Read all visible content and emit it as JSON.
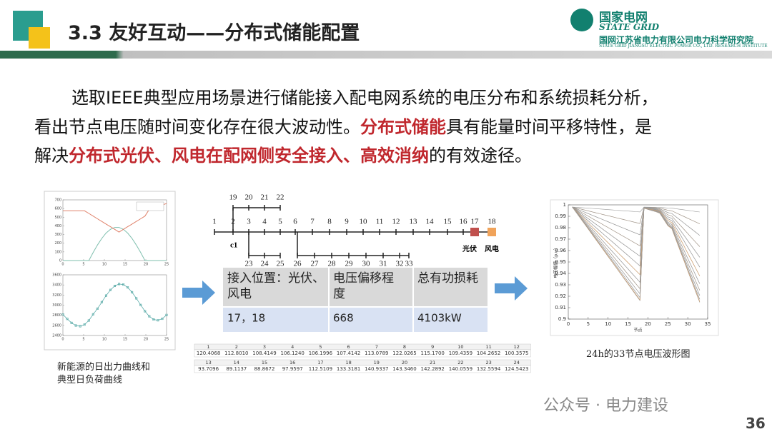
{
  "header": {
    "title": "3.3 友好互动——分布式储能配置",
    "logo_name": "国家电网",
    "logo_en": "STATE GRID",
    "institute": "国网江苏省电力有限公司电力科学研究院",
    "institute_en": "STATE GRID JIANGSU ELECTRIC POWER CO., LTD. RESEARCH INSTITUTE"
  },
  "paragraph": {
    "lines": [
      [
        {
          "text": "选取IEEE典型应用场景进行储能接入配电网系统的电压分布和系统损耗分析，",
          "highlight": false
        }
      ],
      [
        {
          "text": "看出节点电压随时间变化存在很大波动性。",
          "highlight": false
        },
        {
          "text": "分布式储能",
          "highlight": true
        },
        {
          "text": "具有能量时间平移特性，是",
          "highlight": false
        }
      ],
      [
        {
          "text": "解决",
          "highlight": false
        },
        {
          "text": "分布式光伏、风电在配网侧安全接入、高效消纳",
          "highlight": true
        },
        {
          "text": "的有效途径。",
          "highlight": false
        }
      ]
    ]
  },
  "left_charts": {
    "top": {
      "yticks": [
        0,
        100,
        200,
        300,
        400,
        500,
        600,
        700
      ],
      "xticks": [
        0,
        5,
        10,
        15,
        20,
        25
      ]
    },
    "bottom": {
      "yticks": [
        2400,
        2600,
        2800,
        3000,
        3200,
        3400,
        3600
      ],
      "xticks": [
        0,
        5,
        10,
        15,
        20,
        25
      ]
    },
    "caption": [
      "新能源的日出力曲线和",
      "典型日负荷曲线"
    ]
  },
  "network": {
    "nodes": [
      1,
      2,
      3,
      4,
      5,
      6,
      7,
      8,
      9,
      10,
      11,
      12,
      13,
      14,
      15,
      16,
      17,
      18,
      19,
      20,
      21,
      22,
      23,
      24,
      25,
      26,
      27,
      28,
      29,
      30,
      31,
      32,
      33
    ],
    "feeder": "c1",
    "pv_label": "光伏",
    "wind_label": "风电"
  },
  "table": {
    "header": [
      "接入位置：光伏、风电",
      "电压偏移程度",
      "总有功损耗"
    ],
    "rows": [
      [
        "17，18",
        "668",
        "4103kW"
      ]
    ]
  },
  "load_table": {
    "rows": [
      {
        "index": [
          1,
          2,
          3,
          4,
          5,
          6,
          7,
          8,
          9,
          10,
          11,
          12
        ],
        "values": [
          "120.4068",
          "112.8010",
          "108.4149",
          "106.1240",
          "106.1996",
          "107.4142",
          "113.0789",
          "122.0265",
          "115.1700",
          "109.4359",
          "104.2652",
          "100.3575"
        ]
      },
      {
        "index": [
          13,
          14,
          15,
          16,
          17,
          18,
          19,
          20,
          21,
          22,
          23,
          24
        ],
        "values": [
          "93.7096",
          "89.1137",
          "88.8672",
          "97.9597",
          "112.5109",
          "133.3181",
          "140.9337",
          "143.3460",
          "142.2892",
          "140.0559",
          "132.5594",
          "124.5423"
        ]
      }
    ]
  },
  "voltage_chart": {
    "ylabel": "电压幅值（p.u）",
    "xlabel": "节点",
    "yticks": [
      0.9,
      0.91,
      0.92,
      0.93,
      0.94,
      0.95,
      0.96,
      0.97,
      0.98,
      0.99,
      1
    ],
    "xticks": [
      0,
      5,
      10,
      15,
      20,
      25,
      30,
      35
    ],
    "caption": "24h的33节点电压波形图"
  },
  "footer": {
    "watermark": "公众号 · 电力建设",
    "page": 36
  }
}
